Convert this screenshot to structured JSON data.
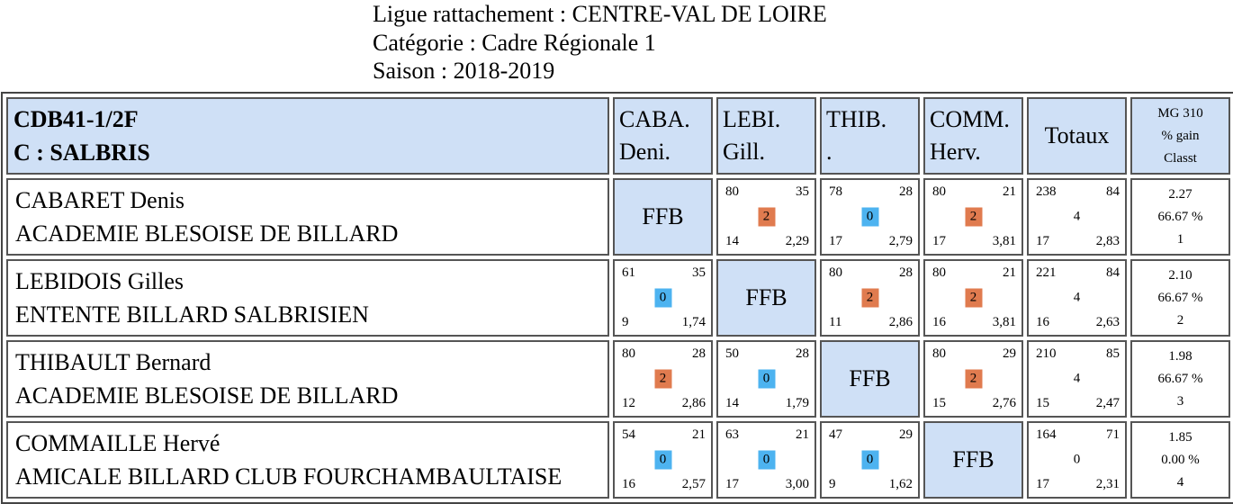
{
  "header": {
    "ligue": "Ligue rattachement : CENTRE-VAL DE LOIRE",
    "categorie": "Catégorie : Cadre Régionale 1",
    "saison": "Saison : 2018-2019"
  },
  "table": {
    "title_line1": "CDB41-1/2F",
    "title_line2": "C : SALBRIS",
    "opponents": [
      {
        "line1": "CABA.",
        "line2": "Deni."
      },
      {
        "line1": "LEBI.",
        "line2": "Gill."
      },
      {
        "line1": "THIB.",
        "line2": "."
      },
      {
        "line1": "COMM.",
        "line2": "Herv."
      }
    ],
    "totaux_label": "Totaux",
    "mg_line1": "MG 310",
    "mg_line2": "% gain",
    "mg_line3": "Classt",
    "ffb_label": "FFB",
    "colors": {
      "header_bg": "#cfe0f6",
      "win": "#e07b4f",
      "loss": "#4db3f0"
    },
    "players": [
      {
        "name": "CABARET Denis",
        "club": "ACADEMIE BLESOISE DE BILLARD",
        "matches": [
          null,
          {
            "points": "80",
            "serie": "35",
            "pts": "2",
            "reprises": "14",
            "moyenne": "2,29"
          },
          {
            "points": "78",
            "serie": "28",
            "pts": "0",
            "reprises": "17",
            "moyenne": "2,79"
          },
          {
            "points": "80",
            "serie": "21",
            "pts": "2",
            "reprises": "17",
            "moyenne": "3,81"
          }
        ],
        "totals": {
          "points": "238",
          "serie": "84",
          "pts": "4",
          "reprises": "17",
          "moyenne": "2,83"
        },
        "mg": "2.27",
        "gain": "66.67 %",
        "classt": "1"
      },
      {
        "name": "LEBIDOIS Gilles",
        "club": "ENTENTE BILLARD SALBRISIEN",
        "matches": [
          {
            "points": "61",
            "serie": "35",
            "pts": "0",
            "reprises": "9",
            "moyenne": "1,74"
          },
          null,
          {
            "points": "80",
            "serie": "28",
            "pts": "2",
            "reprises": "11",
            "moyenne": "2,86"
          },
          {
            "points": "80",
            "serie": "21",
            "pts": "2",
            "reprises": "16",
            "moyenne": "3,81"
          }
        ],
        "totals": {
          "points": "221",
          "serie": "84",
          "pts": "4",
          "reprises": "16",
          "moyenne": "2,63"
        },
        "mg": "2.10",
        "gain": "66.67 %",
        "classt": "2"
      },
      {
        "name": "THIBAULT Bernard",
        "club": "ACADEMIE BLESOISE DE BILLARD",
        "matches": [
          {
            "points": "80",
            "serie": "28",
            "pts": "2",
            "reprises": "12",
            "moyenne": "2,86"
          },
          {
            "points": "50",
            "serie": "28",
            "pts": "0",
            "reprises": "14",
            "moyenne": "1,79"
          },
          null,
          {
            "points": "80",
            "serie": "29",
            "pts": "2",
            "reprises": "15",
            "moyenne": "2,76"
          }
        ],
        "totals": {
          "points": "210",
          "serie": "85",
          "pts": "4",
          "reprises": "15",
          "moyenne": "2,47"
        },
        "mg": "1.98",
        "gain": "66.67 %",
        "classt": "3"
      },
      {
        "name": "COMMAILLE Hervé",
        "club": "AMICALE BILLARD CLUB FOURCHAMBAULTAISE",
        "matches": [
          {
            "points": "54",
            "serie": "21",
            "pts": "0",
            "reprises": "16",
            "moyenne": "2,57"
          },
          {
            "points": "63",
            "serie": "21",
            "pts": "0",
            "reprises": "17",
            "moyenne": "3,00"
          },
          {
            "points": "47",
            "serie": "29",
            "pts": "0",
            "reprises": "9",
            "moyenne": "1,62"
          },
          null
        ],
        "totals": {
          "points": "164",
          "serie": "71",
          "pts": "0",
          "reprises": "17",
          "moyenne": "2,31"
        },
        "mg": "1.85",
        "gain": "0.00 %",
        "classt": "4"
      }
    ]
  }
}
